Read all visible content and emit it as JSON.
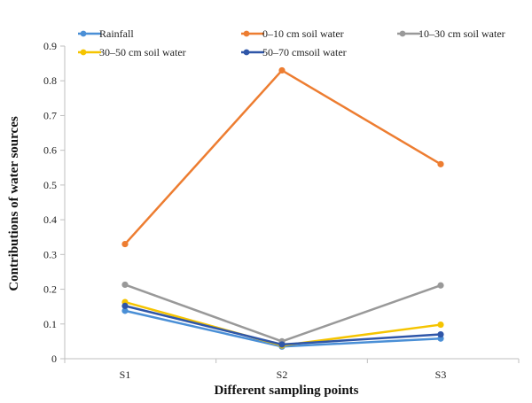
{
  "chart_data": {
    "type": "line",
    "categories": [
      "S1",
      "S2",
      "S3"
    ],
    "xlabel": "Different sampling points",
    "ylabel": "Contributions  of water sources",
    "ylim": [
      0,
      0.9
    ],
    "yticks": [
      "0",
      "0.1",
      "0.2",
      "0.3",
      "0.4",
      "0.5",
      "0.6",
      "0.7",
      "0.8",
      "0.9"
    ],
    "grid": false,
    "legend_position": "top",
    "series": [
      {
        "name": "Rainfall",
        "color": "#4a8fd6",
        "values": [
          0.138,
          0.035,
          0.058
        ]
      },
      {
        "name": "0–10 cm soil water",
        "color": "#ed7d31",
        "values": [
          0.33,
          0.83,
          0.56
        ]
      },
      {
        "name": "10–30 cm soil water",
        "color": "#999999",
        "values": [
          0.213,
          0.05,
          0.211
        ]
      },
      {
        "name": "30–50 cm soil water",
        "color": "#f5c400",
        "values": [
          0.163,
          0.038,
          0.098
        ]
      },
      {
        "name": "50–70 cmsoil water",
        "color": "#2f56a8",
        "values": [
          0.152,
          0.041,
          0.07
        ]
      }
    ]
  }
}
